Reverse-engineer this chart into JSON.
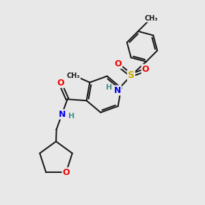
{
  "background_color": "#e8e8e8",
  "atom_colors": {
    "N": "#0000ee",
    "O": "#ee0000",
    "S": "#ccaa00",
    "C": "#1a1a1a",
    "H": "#4a8f8f"
  },
  "bond_color": "#1a1a1a",
  "figsize": [
    3.0,
    3.0
  ],
  "dpi": 100
}
